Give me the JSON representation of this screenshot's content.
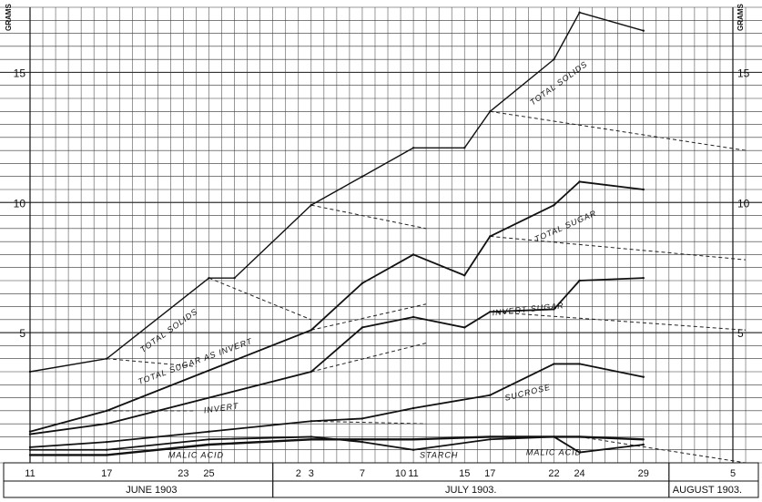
{
  "chart_data": {
    "type": "line",
    "y_unit_label": "GRAMS",
    "ylim": [
      0,
      17.5
    ],
    "y_ticks": [
      5,
      10,
      15
    ],
    "grid": "on",
    "x_ticks": [
      {
        "label": "11",
        "day": 11
      },
      {
        "label": "17",
        "day": 17
      },
      {
        "label": "23",
        "day": 23
      },
      {
        "label": "25",
        "day": 25
      },
      {
        "label": "2",
        "day": 32
      },
      {
        "label": "3",
        "day": 33
      },
      {
        "label": "7",
        "day": 37
      },
      {
        "label": "10",
        "day": 40
      },
      {
        "label": "11",
        "day": 41
      },
      {
        "label": "15",
        "day": 45
      },
      {
        "label": "17",
        "day": 47
      },
      {
        "label": "22",
        "day": 52
      },
      {
        "label": "24",
        "day": 54
      },
      {
        "label": "29",
        "day": 59
      },
      {
        "label": "5",
        "day": 66
      }
    ],
    "months": [
      {
        "label": "JUNE 1903",
        "from": 11,
        "to": 30
      },
      {
        "label": "JULY 1903.",
        "from": 30,
        "to": 61
      },
      {
        "label": "AUGUST 1903.",
        "from": 61,
        "to": 67
      }
    ],
    "series": [
      {
        "name": "TOTAL SOLIDS",
        "x": [
          11,
          17,
          25,
          27,
          33,
          37,
          41,
          45,
          47,
          52,
          54,
          59
        ],
        "y": [
          3.5,
          4.0,
          7.1,
          7.1,
          9.9,
          11.0,
          12.1,
          12.1,
          13.5,
          15.5,
          17.3,
          16.6
        ]
      },
      {
        "name": "TOTAL SUGAR AS INVERT",
        "x": [
          11,
          17,
          33,
          37,
          41,
          45,
          47,
          52,
          54,
          59
        ],
        "y": [
          1.2,
          2.0,
          5.1,
          6.9,
          8.0,
          7.2,
          8.7,
          9.9,
          10.8,
          10.5
        ]
      },
      {
        "name": "INVERT SUGAR",
        "x": [
          11,
          17,
          33,
          37,
          41,
          45,
          47,
          52,
          54,
          59
        ],
        "y": [
          1.1,
          1.5,
          3.5,
          5.2,
          5.6,
          5.2,
          5.8,
          5.9,
          7.0,
          7.1
        ]
      },
      {
        "name": "SUCROSE",
        "x": [
          11,
          17,
          25,
          33,
          37,
          41,
          47,
          52,
          54,
          59
        ],
        "y": [
          0.6,
          0.8,
          1.2,
          1.6,
          1.7,
          2.1,
          2.6,
          3.8,
          3.8,
          3.3
        ]
      },
      {
        "name": "STARCH",
        "x": [
          11,
          17,
          25,
          33,
          37,
          41,
          47,
          52,
          54,
          59
        ],
        "y": [
          0.5,
          0.5,
          0.9,
          1.0,
          0.8,
          0.5,
          0.9,
          1.0,
          0.4,
          0.7
        ]
      },
      {
        "name": "MALIC ACID",
        "x": [
          11,
          17,
          25,
          33,
          37,
          41,
          47,
          52,
          54,
          59
        ],
        "y": [
          0.3,
          0.3,
          0.7,
          0.9,
          0.9,
          0.9,
          1.0,
          1.0,
          1.0,
          0.9
        ]
      }
    ],
    "annotations": [
      {
        "text": "TOTAL SOLIDS",
        "x": 22,
        "y": 5.0
      },
      {
        "text": "TOTAL SOLIDS",
        "x": 52.5,
        "y": 14.5
      },
      {
        "text": "TOTAL SUGAR AS INVERT",
        "x": 24,
        "y": 3.8
      },
      {
        "text": "TOTAL SUGAR",
        "x": 53,
        "y": 9.0
      },
      {
        "text": "INVERT",
        "x": 26,
        "y": 2.0
      },
      {
        "text": "INVERT SUGAR",
        "x": 50,
        "y": 5.8
      },
      {
        "text": "SUCROSE",
        "x": 50,
        "y": 2.6
      },
      {
        "text": "MALIC ACID",
        "x": 24,
        "y": 0.2
      },
      {
        "text": "STARCH",
        "x": 43,
        "y": 0.2
      },
      {
        "text": "MALIC ACID",
        "x": 52,
        "y": 0.3
      }
    ],
    "dashed_projections": [
      {
        "x": [
          17,
          24
        ],
        "y": [
          4.0,
          3.7
        ]
      },
      {
        "x": [
          25,
          33
        ],
        "y": [
          7.1,
          5.5
        ]
      },
      {
        "x": [
          33,
          42
        ],
        "y": [
          9.9,
          9.0
        ]
      },
      {
        "x": [
          47,
          67
        ],
        "y": [
          13.5,
          12.0
        ]
      },
      {
        "x": [
          47,
          67
        ],
        "y": [
          8.7,
          7.8
        ]
      },
      {
        "x": [
          47,
          67
        ],
        "y": [
          5.8,
          5.1
        ]
      },
      {
        "x": [
          17,
          24
        ],
        "y": [
          2.0,
          2.0
        ]
      },
      {
        "x": [
          33,
          42
        ],
        "y": [
          5.1,
          6.1
        ]
      },
      {
        "x": [
          33,
          42
        ],
        "y": [
          3.5,
          4.6
        ]
      },
      {
        "x": [
          33,
          42
        ],
        "y": [
          1.6,
          1.5
        ]
      },
      {
        "x": [
          54,
          67
        ],
        "y": [
          1.0,
          0.0
        ]
      }
    ]
  }
}
